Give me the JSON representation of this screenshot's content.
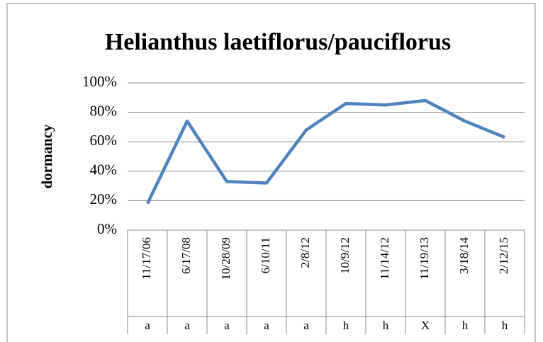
{
  "chart_data": {
    "type": "line",
    "title": "Helianthus laetiflorus/pauciflorus",
    "y_label": "dormancy",
    "categories": [
      "11/17/06",
      "6/17/08",
      "10/28/09",
      "6/10/11",
      "2/8/12",
      "10/9/12",
      "11/14/12",
      "11/19/13",
      "3/18/14",
      "2/12/15"
    ],
    "category_groups": [
      "a",
      "a",
      "a",
      "a",
      "a",
      "h",
      "h",
      "X",
      "h",
      "h"
    ],
    "series": [
      {
        "color": "#4f81bd",
        "values": [
          18,
          74,
          33,
          32,
          68,
          86,
          85,
          88,
          74,
          63
        ]
      }
    ],
    "ylim": [
      0,
      100
    ],
    "yticks": [
      {
        "value": 0,
        "label": "0%"
      },
      {
        "value": 20,
        "label": "20%"
      },
      {
        "value": 40,
        "label": "40%"
      },
      {
        "value": 60,
        "label": "60%"
      },
      {
        "value": 80,
        "label": "80%"
      },
      {
        "value": 100,
        "label": "100%"
      }
    ],
    "grid": true
  }
}
